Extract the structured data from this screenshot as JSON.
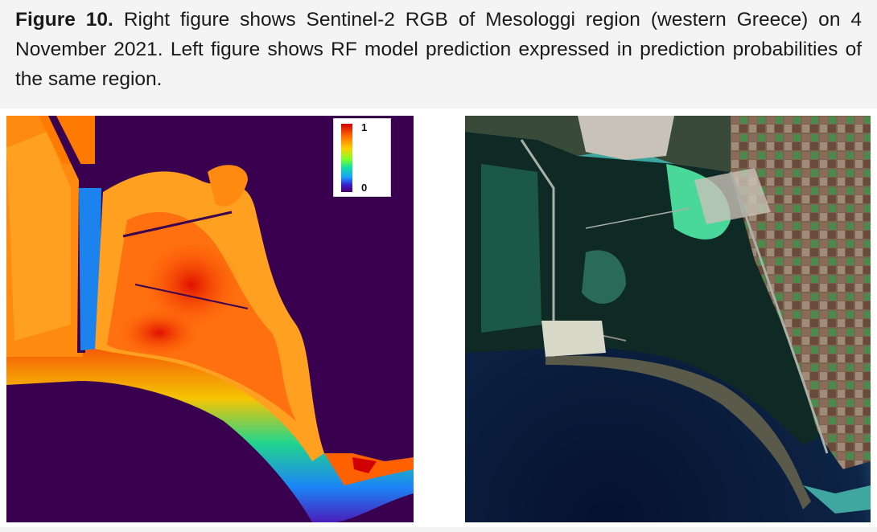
{
  "caption": {
    "label": "Figure 10.",
    "text": " Right figure shows Sentinel-2 RGB of Mesologgi region (western Greece) on 4 November 2021. Left figure shows RF model prediction expressed in prediction probabilities of the same region."
  },
  "left_panel": {
    "legend": {
      "max": "1",
      "min": "0"
    },
    "colormap": [
      "#d10000",
      "#ff6a00",
      "#ffd000",
      "#7dff2a",
      "#12e0a0",
      "#1aa0ff",
      "#3a18c8",
      "#4a0070"
    ],
    "background": "#3a0050"
  },
  "right_panel": {
    "sea_color": "#0a1f3a",
    "lagoon_color": "#0f2a24",
    "land_color": "#6a5a48"
  }
}
